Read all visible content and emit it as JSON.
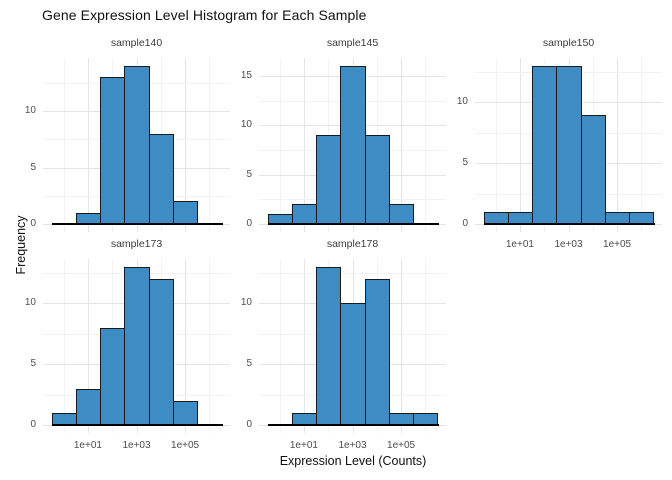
{
  "title": "Gene Expression Level Histogram for Each Sample",
  "axes": {
    "x_title": "Expression Level (Counts)",
    "y_title": "Frequency",
    "x_scale": "log10",
    "x_range_log10": [
      -0.85,
      6.85
    ],
    "x_major_ticks": [
      {
        "label": "1e+01",
        "log10": 1
      },
      {
        "label": "1e+03",
        "log10": 3
      },
      {
        "label": "1e+05",
        "log10": 5
      }
    ],
    "x_minor_gridline_log10": [
      0,
      2,
      4,
      6
    ],
    "y_minor_interval": 2.5,
    "y_expansion": 0.05
  },
  "colors": {
    "bar_fill": "#3d8cc4",
    "bar_edge": "#1a1a1a",
    "grid_major": "#e4e4e4",
    "grid_minor": "#f2f2f2",
    "zero_line": "#000000",
    "tick_label": "#4d4d4d",
    "strip_text": "#3c3c3c",
    "title_text": "#111111",
    "background": "#ffffff"
  },
  "chart_data": {
    "type": "bar",
    "subtype": "histogram-facets",
    "title": "Gene Expression Level Histogram for Each Sample",
    "xlabel": "Expression Level (Counts)",
    "ylabel": "Frequency",
    "grid": "on",
    "legend": "none",
    "facets": [
      {
        "title": "sample140",
        "bin_center_log10": [
          1,
          2,
          3,
          4,
          5
        ],
        "counts": [
          1,
          13,
          14,
          8,
          2
        ],
        "ymax": 14,
        "y_ticks": [
          0,
          5,
          10
        ],
        "y_tick_labels": [
          "0",
          "5",
          "10"
        ],
        "show_x_labels": false
      },
      {
        "title": "sample145",
        "bin_center_log10": [
          0,
          1,
          2,
          3,
          4,
          5
        ],
        "counts": [
          1,
          2,
          9,
          16,
          9,
          2
        ],
        "ymax": 16,
        "y_ticks": [
          0,
          5,
          10,
          15
        ],
        "y_tick_labels": [
          "0",
          "5",
          "10",
          "15"
        ],
        "show_x_labels": false
      },
      {
        "title": "sample150",
        "bin_center_log10": [
          0,
          1,
          2,
          3,
          4,
          5,
          6
        ],
        "counts": [
          1,
          1,
          13,
          13,
          9,
          1,
          1
        ],
        "ymax": 13,
        "y_ticks": [
          0,
          5,
          10
        ],
        "y_tick_labels": [
          "0",
          "5",
          "10"
        ],
        "show_x_labels": true
      },
      {
        "title": "sample173",
        "bin_center_log10": [
          0,
          1,
          2,
          3,
          4,
          5
        ],
        "counts": [
          1,
          3,
          8,
          13,
          12,
          2
        ],
        "ymax": 13,
        "y_ticks": [
          0,
          5,
          10
        ],
        "y_tick_labels": [
          "0",
          "5",
          "10"
        ],
        "show_x_labels": true
      },
      {
        "title": "sample178",
        "bin_center_log10": [
          1,
          2,
          3,
          4,
          5,
          6
        ],
        "counts": [
          1,
          13,
          10,
          12,
          1,
          1
        ],
        "ymax": 13,
        "y_ticks": [
          0,
          5,
          10
        ],
        "y_tick_labels": [
          "0",
          "5",
          "10"
        ],
        "show_x_labels": true
      }
    ]
  }
}
